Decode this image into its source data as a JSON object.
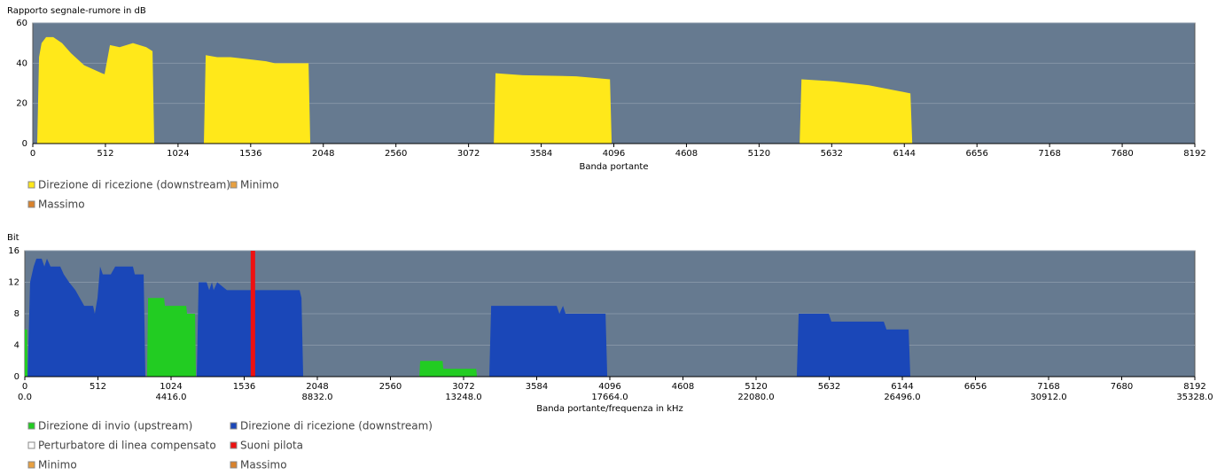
{
  "chart_data": [
    {
      "type": "area",
      "y_label": "Rapporto segnale-rumore in dB",
      "x_label": "Banda portante",
      "xlim": [
        0,
        8192
      ],
      "xticks": [
        0,
        512,
        1024,
        1536,
        2048,
        2560,
        3072,
        3584,
        4096,
        4608,
        5120,
        5632,
        6144,
        6656,
        7168,
        7680,
        8192
      ],
      "ylim": [
        0,
        60
      ],
      "yticks": [
        0,
        20,
        40,
        60
      ],
      "grid": true,
      "background": "#667a90",
      "series": [
        {
          "name": "Direzione di ricezione (downstream)",
          "color": "#ffe81a",
          "x": [
            31,
            44,
            62,
            94,
            144,
            206,
            269,
            362,
            487,
            506,
            531,
            544,
            612,
            706,
            800,
            844,
            856,
            1206,
            1219,
            1300,
            1394,
            1519,
            1644,
            1706,
            1944,
            1956,
            3250,
            3262,
            3456,
            3831,
            4069,
            4081,
            5406,
            5419,
            5644,
            5894,
            6187,
            6200
          ],
          "values": [
            0,
            43,
            50,
            53,
            53,
            50,
            45,
            39,
            35,
            34.5,
            44,
            49,
            48,
            50,
            48,
            46,
            0,
            0,
            44,
            43,
            43,
            42,
            41,
            40,
            40,
            0,
            0,
            35,
            34,
            33.5,
            32,
            0,
            0,
            32,
            31,
            29,
            25,
            0
          ]
        },
        {
          "name": "Minimo",
          "color": "#e8a040",
          "x": [],
          "values": []
        },
        {
          "name": "Massimo",
          "color": "#d9822b",
          "x": [],
          "values": []
        }
      ]
    },
    {
      "type": "area",
      "y_label": "Bit",
      "x_label": "Banda portante/frequenza in kHz",
      "xlim": [
        0,
        8192
      ],
      "xticks": [
        0,
        512,
        1024,
        1536,
        2048,
        2560,
        3072,
        3584,
        4096,
        4608,
        5120,
        5632,
        6144,
        6656,
        7168,
        7680,
        8192
      ],
      "x2lim": [
        0,
        35328
      ],
      "x2ticks": [
        {
          "value": 0,
          "label": "0.0"
        },
        {
          "value": 4416,
          "label": "4416.0"
        },
        {
          "value": 8832,
          "label": "8832.0"
        },
        {
          "value": 13248,
          "label": "13248.0"
        },
        {
          "value": 17664,
          "label": "17664.0"
        },
        {
          "value": 22080,
          "label": "22080.0"
        },
        {
          "value": 26496,
          "label": "26496.0"
        },
        {
          "value": 30912,
          "label": "30912.0"
        },
        {
          "value": 35328,
          "label": "35328.0"
        }
      ],
      "ylim": [
        0,
        16
      ],
      "yticks": [
        0,
        4,
        8,
        12,
        16
      ],
      "grid": true,
      "background": "#667a90",
      "series": [
        {
          "name": "Direzione di invio (upstream)",
          "color": "#22cc22",
          "x": [
            0,
            16,
            19,
            856,
            863,
            975,
            981,
            1130,
            1136,
            1192,
            1198,
            2762,
            2768,
            2925,
            2930,
            3160,
            3166
          ],
          "values": [
            6,
            6,
            0,
            0,
            10,
            10,
            9,
            9,
            8,
            8,
            0,
            0,
            2,
            2,
            1,
            1,
            0
          ]
        },
        {
          "name": "Direzione di ricezione (downstream)",
          "color": "#1a47b8",
          "x": [
            19,
            37,
            62,
            81,
            118,
            137,
            155,
            180,
            248,
            273,
            310,
            354,
            385,
            416,
            478,
            490,
            509,
            527,
            546,
            602,
            633,
            757,
            770,
            832,
            844,
            1204,
            1217,
            1273,
            1291,
            1310,
            1322,
            1347,
            1415,
            1924,
            1937,
            1949,
            3252,
            3265,
            3724,
            3743,
            3768,
            3786,
            4066,
            4078,
            5405,
            5418,
            5629,
            5647,
            6014,
            6033,
            6188,
            6200
          ],
          "values": [
            0,
            12,
            14,
            15,
            15,
            14,
            15,
            14,
            14,
            13,
            12,
            11,
            10,
            9,
            9,
            8,
            10,
            14,
            13,
            13,
            14,
            14,
            13,
            13,
            0,
            0,
            12,
            12,
            11,
            12,
            11,
            12,
            11,
            11,
            10,
            0,
            0,
            9,
            9,
            8,
            9,
            8,
            8,
            0,
            0,
            8,
            8,
            7,
            7,
            6,
            6,
            0
          ]
        },
        {
          "name": "Perturbatore di linea compensato",
          "color": "#ffffff",
          "x": [],
          "values": []
        },
        {
          "name": "Suoni pilota",
          "color": "#ee1111",
          "mark": "bar",
          "x": [
            1597
          ],
          "values": [
            16
          ]
        },
        {
          "name": "Minimo",
          "color": "#e8a040",
          "x": [],
          "values": []
        },
        {
          "name": "Massimo",
          "color": "#d9822b",
          "x": [],
          "values": []
        }
      ]
    }
  ]
}
